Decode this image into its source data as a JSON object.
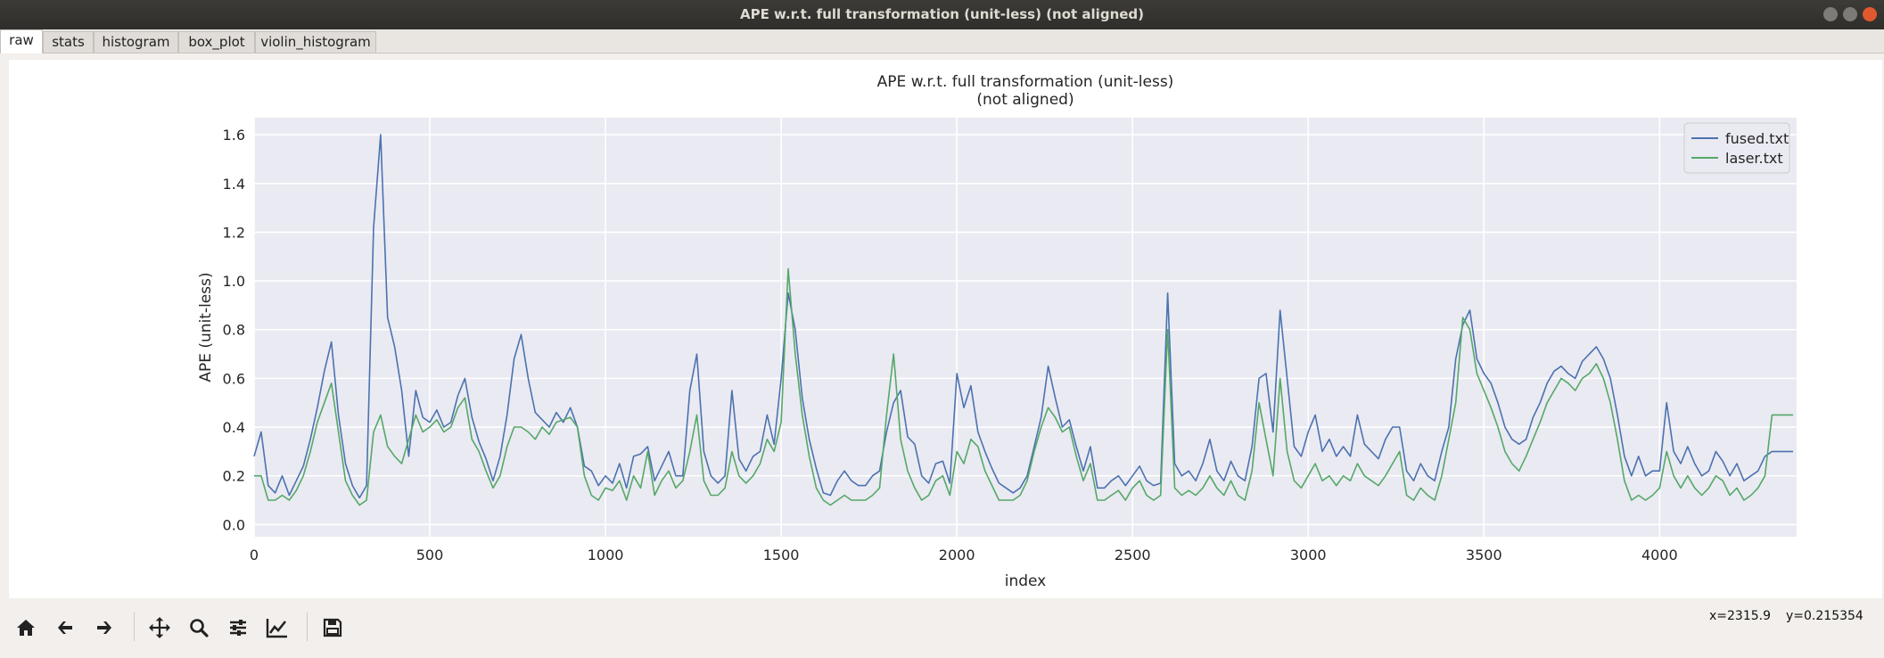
{
  "window": {
    "title": "APE w.r.t. full transformation (unit-less) (not aligned)"
  },
  "tabs": [
    {
      "label": "raw"
    },
    {
      "label": "stats"
    },
    {
      "label": "histogram"
    },
    {
      "label": "box_plot"
    },
    {
      "label": "violin_histogram"
    }
  ],
  "toolbar": {
    "icons": [
      "home-icon",
      "back-arrow-icon",
      "forward-arrow-icon",
      "pan-icon",
      "zoom-icon",
      "configure-subplots-icon",
      "edit-axis-icon",
      "save-icon"
    ]
  },
  "status": {
    "x": "x=2315.9",
    "y": "y=0.215354"
  },
  "colors": {
    "fused": "#4c72b0",
    "laser": "#55a868",
    "plot_bg": "#eaeaf2"
  },
  "chart_data": {
    "type": "line",
    "title": "APE w.r.t. full transformation (unit-less)",
    "subtitle": "(not aligned)",
    "xlabel": "index",
    "ylabel": "APE (unit-less)",
    "xlim": [
      0,
      4390
    ],
    "ylim": [
      -0.05,
      1.67
    ],
    "xticks": [
      0,
      500,
      1000,
      1500,
      2000,
      2500,
      3000,
      3500,
      4000
    ],
    "yticks": [
      0.0,
      0.2,
      0.4,
      0.6,
      0.8,
      1.0,
      1.2,
      1.4,
      1.6
    ],
    "grid": true,
    "legend_position": "top-right",
    "x_step": 20,
    "series": [
      {
        "name": "fused.txt",
        "color": "#4c72b0",
        "values": [
          0.28,
          0.38,
          0.16,
          0.13,
          0.2,
          0.12,
          0.18,
          0.24,
          0.35,
          0.48,
          0.63,
          0.75,
          0.45,
          0.25,
          0.16,
          0.11,
          0.16,
          1.22,
          1.6,
          0.85,
          0.73,
          0.55,
          0.28,
          0.55,
          0.44,
          0.42,
          0.47,
          0.4,
          0.42,
          0.53,
          0.6,
          0.44,
          0.34,
          0.27,
          0.18,
          0.28,
          0.45,
          0.68,
          0.78,
          0.6,
          0.46,
          0.43,
          0.4,
          0.46,
          0.42,
          0.48,
          0.4,
          0.24,
          0.22,
          0.16,
          0.2,
          0.17,
          0.25,
          0.15,
          0.28,
          0.29,
          0.32,
          0.18,
          0.24,
          0.3,
          0.2,
          0.2,
          0.55,
          0.7,
          0.3,
          0.2,
          0.17,
          0.2,
          0.55,
          0.27,
          0.22,
          0.28,
          0.3,
          0.45,
          0.33,
          0.6,
          0.95,
          0.8,
          0.52,
          0.35,
          0.23,
          0.13,
          0.12,
          0.18,
          0.22,
          0.18,
          0.16,
          0.16,
          0.2,
          0.22,
          0.38,
          0.5,
          0.55,
          0.36,
          0.33,
          0.2,
          0.17,
          0.25,
          0.26,
          0.17,
          0.62,
          0.48,
          0.57,
          0.38,
          0.3,
          0.23,
          0.17,
          0.15,
          0.13,
          0.15,
          0.2,
          0.32,
          0.44,
          0.65,
          0.52,
          0.4,
          0.43,
          0.32,
          0.22,
          0.32,
          0.15,
          0.15,
          0.18,
          0.2,
          0.16,
          0.2,
          0.24,
          0.18,
          0.16,
          0.17,
          0.95,
          0.25,
          0.2,
          0.22,
          0.18,
          0.25,
          0.35,
          0.22,
          0.18,
          0.26,
          0.2,
          0.18,
          0.32,
          0.6,
          0.62,
          0.38,
          0.88,
          0.6,
          0.32,
          0.28,
          0.38,
          0.45,
          0.3,
          0.35,
          0.28,
          0.32,
          0.28,
          0.45,
          0.33,
          0.3,
          0.27,
          0.35,
          0.4,
          0.4,
          0.22,
          0.18,
          0.25,
          0.2,
          0.18,
          0.3,
          0.4,
          0.68,
          0.82,
          0.88,
          0.68,
          0.62,
          0.58,
          0.5,
          0.4,
          0.35,
          0.33,
          0.35,
          0.44,
          0.5,
          0.58,
          0.63,
          0.65,
          0.62,
          0.6,
          0.67,
          0.7,
          0.73,
          0.68,
          0.6,
          0.45,
          0.28,
          0.2,
          0.28,
          0.2,
          0.22,
          0.22,
          0.5,
          0.3,
          0.25,
          0.32,
          0.25,
          0.2,
          0.22,
          0.3,
          0.26,
          0.2,
          0.25,
          0.18,
          0.2,
          0.22,
          0.28,
          0.3
        ]
      },
      {
        "name": "laser.txt",
        "color": "#55a868",
        "values": [
          0.2,
          0.2,
          0.1,
          0.1,
          0.12,
          0.1,
          0.14,
          0.2,
          0.3,
          0.42,
          0.5,
          0.58,
          0.38,
          0.18,
          0.12,
          0.08,
          0.1,
          0.38,
          0.45,
          0.32,
          0.28,
          0.25,
          0.35,
          0.45,
          0.38,
          0.4,
          0.43,
          0.38,
          0.4,
          0.48,
          0.52,
          0.35,
          0.3,
          0.22,
          0.15,
          0.2,
          0.32,
          0.4,
          0.4,
          0.38,
          0.35,
          0.4,
          0.37,
          0.42,
          0.43,
          0.44,
          0.4,
          0.2,
          0.12,
          0.1,
          0.15,
          0.14,
          0.18,
          0.1,
          0.2,
          0.15,
          0.3,
          0.12,
          0.18,
          0.22,
          0.15,
          0.18,
          0.3,
          0.45,
          0.18,
          0.12,
          0.12,
          0.15,
          0.3,
          0.2,
          0.17,
          0.2,
          0.25,
          0.35,
          0.3,
          0.42,
          1.05,
          0.7,
          0.45,
          0.28,
          0.15,
          0.1,
          0.08,
          0.1,
          0.12,
          0.1,
          0.1,
          0.1,
          0.12,
          0.15,
          0.45,
          0.7,
          0.35,
          0.22,
          0.15,
          0.1,
          0.12,
          0.18,
          0.2,
          0.12,
          0.3,
          0.25,
          0.35,
          0.32,
          0.22,
          0.16,
          0.1,
          0.1,
          0.1,
          0.12,
          0.18,
          0.3,
          0.4,
          0.48,
          0.44,
          0.38,
          0.4,
          0.28,
          0.18,
          0.25,
          0.1,
          0.1,
          0.12,
          0.14,
          0.1,
          0.15,
          0.18,
          0.12,
          0.1,
          0.12,
          0.8,
          0.15,
          0.12,
          0.14,
          0.12,
          0.15,
          0.2,
          0.15,
          0.12,
          0.18,
          0.12,
          0.1,
          0.22,
          0.5,
          0.35,
          0.2,
          0.6,
          0.3,
          0.18,
          0.15,
          0.2,
          0.25,
          0.18,
          0.2,
          0.16,
          0.2,
          0.18,
          0.25,
          0.2,
          0.18,
          0.16,
          0.2,
          0.25,
          0.3,
          0.12,
          0.1,
          0.15,
          0.12,
          0.1,
          0.2,
          0.35,
          0.5,
          0.85,
          0.8,
          0.62,
          0.55,
          0.48,
          0.4,
          0.3,
          0.25,
          0.22,
          0.28,
          0.35,
          0.42,
          0.5,
          0.55,
          0.6,
          0.58,
          0.55,
          0.6,
          0.62,
          0.66,
          0.6,
          0.5,
          0.35,
          0.18,
          0.1,
          0.12,
          0.1,
          0.12,
          0.15,
          0.3,
          0.2,
          0.15,
          0.2,
          0.15,
          0.12,
          0.15,
          0.2,
          0.18,
          0.12,
          0.15,
          0.1,
          0.12,
          0.15,
          0.2,
          0.45
        ]
      }
    ]
  }
}
